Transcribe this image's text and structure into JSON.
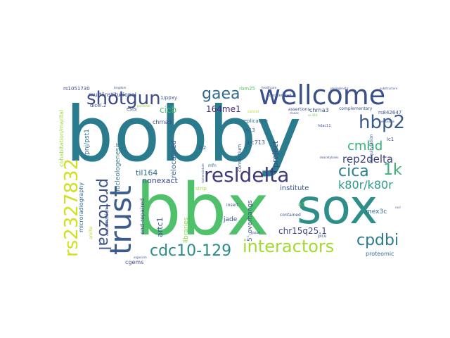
{
  "words": [
    {
      "text": "bobby",
      "color": "#2a7b8e"
    },
    {
      "text": "bbx",
      "color": "#4fc16b"
    },
    {
      "text": "sox",
      "color": "#2e8f8a"
    },
    {
      "text": "wellcome",
      "color": "#3b4f8a"
    },
    {
      "text": "trust",
      "color": "#3a5b8c"
    },
    {
      "text": "shotgun",
      "color": "#3f4a88"
    },
    {
      "text": "resldelta",
      "color": "#3e3a7c"
    },
    {
      "text": "rs2327832",
      "color": "#cfe11c"
    },
    {
      "text": "interactors",
      "color": "#a4da2f"
    },
    {
      "text": "cdc10-129",
      "color": "#2a8d8b"
    },
    {
      "text": "hbp2",
      "color": "#3a5a8c"
    },
    {
      "text": "protozoal",
      "color": "#3b528b"
    },
    {
      "text": "gaea",
      "color": "#2f6a8e"
    },
    {
      "text": "cica",
      "color": "#2a7f8e"
    },
    {
      "text": "1k",
      "color": "#3ab47a"
    },
    {
      "text": "cpdbi",
      "color": "#2b7b8e"
    },
    {
      "text": "cmhd",
      "color": "#2fb47c"
    },
    {
      "text": "k80r/k80r",
      "color": "#2d9a8a"
    },
    {
      "text": "rep2delta",
      "color": "#3b3e82"
    },
    {
      "text": "nonexact",
      "color": "#3a4d8a"
    },
    {
      "text": "til164",
      "color": "#2f6b8e"
    },
    {
      "text": "164me1",
      "color": "#472d7b"
    },
    {
      "text": "cicb",
      "color": "#48bd6c"
    },
    {
      "text": "artc1",
      "color": "#3a548c"
    },
    {
      "text": "chr15q25.1",
      "color": "#40467f"
    },
    {
      "text": "mex3c",
      "color": "#2c6d8e"
    },
    {
      "text": "project",
      "color": "#3b4b88"
    },
    {
      "text": "institute",
      "color": "#3b528b"
    },
    {
      "text": "relocalised",
      "color": "#3a5d8c"
    },
    {
      "text": "nucleologenesis",
      "color": "#3f7a8c"
    },
    {
      "text": "microradiography",
      "color": "#2c6a8c"
    },
    {
      "text": "kpnj/pst1",
      "color": "#2e6c8e"
    },
    {
      "text": "cohabitation/marital",
      "color": "#9bd93c"
    },
    {
      "text": "multiinstitutional",
      "color": "#3a528b"
    },
    {
      "text": "end-repaired",
      "color": "#433e85"
    },
    {
      "text": "libraries",
      "color": "#88d548"
    },
    {
      "text": "5'-overhangs",
      "color": "#3a5a8c"
    },
    {
      "text": "cgems",
      "color": "#3e4989"
    },
    {
      "text": "jade",
      "color": "#3b528b"
    },
    {
      "text": "proteomic",
      "color": "#2f6b8e"
    },
    {
      "text": "contained",
      "color": "#3b528b"
    },
    {
      "text": "replication",
      "color": "#2d708e"
    },
    {
      "text": "automation",
      "color": "#3b528b"
    },
    {
      "text": "chrna3",
      "color": "#39568c"
    },
    {
      "text": "chrna5",
      "color": "#3d4e8a"
    },
    {
      "text": "complementary",
      "color": "#3a5b8c"
    },
    {
      "text": "rs842647",
      "color": "#3b528b"
    },
    {
      "text": "rs1051730",
      "color": "#3e4a89"
    },
    {
      "text": "1/ppxy",
      "color": "#3a548c"
    },
    {
      "text": "dicel.2",
      "color": "#3b528b"
    },
    {
      "text": "ests",
      "color": "#3b4d8a"
    },
    {
      "text": "rbm25",
      "color": "#5ec962"
    },
    {
      "text": "consortium",
      "color": "#3a5a8c"
    },
    {
      "text": "luc713",
      "color": "#39568c"
    },
    {
      "text": "lc2",
      "color": "#3b528b"
    },
    {
      "text": "lc1",
      "color": "#3b528b"
    },
    {
      "text": "m13",
      "color": "#3a5a8c"
    },
    {
      "text": "e3",
      "color": "#6ccd5a"
    },
    {
      "text": "strip",
      "color": "#a2da37"
    },
    {
      "text": "insert",
      "color": "#3b528b"
    },
    {
      "text": "picu",
      "color": "#3b528b"
    },
    {
      "text": "mfn",
      "color": "#2f6b8e"
    },
    {
      "text": "arellla",
      "color": "#b5de2b"
    },
    {
      "text": "assertions",
      "color": "#3a528b"
    },
    {
      "text": "ubiquitylation",
      "color": "#3a5a8c"
    },
    {
      "text": "hdac11",
      "color": "#3b528b"
    },
    {
      "text": "concatenated",
      "color": "#3b528b"
    },
    {
      "text": "deacetylases",
      "color": "#3b528b"
    },
    {
      "text": "phylogenetic",
      "color": "#3b528b"
    },
    {
      "text": "substructure",
      "color": "#3b528b"
    },
    {
      "text": "cancer",
      "color": "#b5de2b"
    },
    {
      "text": "global",
      "color": "#3b528b"
    },
    {
      "text": "organism",
      "color": "#3b528b"
    },
    {
      "text": "healthcare",
      "color": "#3b528b"
    },
    {
      "text": "kingdom",
      "color": "#3b528b"
    },
    {
      "text": "passive",
      "color": "#a0da39"
    },
    {
      "text": "ms",
      "color": "#3b528b"
    },
    {
      "text": "nomenclature",
      "color": "#3b528b"
    },
    {
      "text": "perfusions",
      "color": "#3b528b"
    },
    {
      "text": "clones",
      "color": "#3b528b"
    },
    {
      "text": "xc-216",
      "color": "#6ccd5a"
    },
    {
      "text": "ruvl",
      "color": "#3b528b"
    }
  ]
}
